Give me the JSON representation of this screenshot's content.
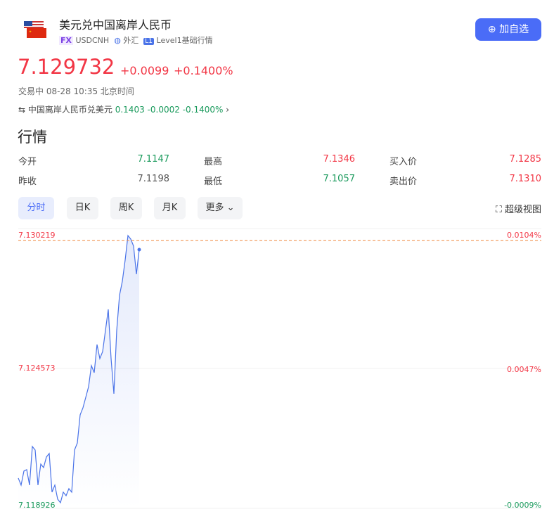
{
  "header": {
    "title": "美元兑中国离岸人民币",
    "badge": "FX",
    "code": "USDCNH",
    "market": "外汇",
    "level_badge": "L1",
    "level": "Level1基础行情",
    "button": "加自选"
  },
  "quote": {
    "price": 7.129732,
    "change": "+0.0099",
    "change_pct": "+0.1400%",
    "status": "交易中 08-28 10:35 北京时间",
    "inverse": {
      "name": "中国离岸人民币兑美元",
      "price": "0.1403",
      "change": "-0.0002",
      "change_pct": "-0.1400%"
    }
  },
  "section_title": "行情",
  "stats": [
    {
      "label": "今开",
      "value": "7.1147",
      "color": "#1a9a5c"
    },
    {
      "label": "最高",
      "value": "7.1346",
      "color": "#f23645"
    },
    {
      "label": "买入价",
      "value": "7.1285",
      "color": "#f23645"
    },
    {
      "label": "昨收",
      "value": "7.1198",
      "color": "#555"
    },
    {
      "label": "最低",
      "value": "7.1057",
      "color": "#1a9a5c"
    },
    {
      "label": "卖出价",
      "value": "7.1310",
      "color": "#f23645"
    }
  ],
  "tabs": [
    "分时",
    "日K",
    "周K",
    "月K",
    "更多"
  ],
  "active_tab": 0,
  "super_view": "超级视图",
  "chart_data": {
    "type": "line",
    "color": "#4a73e8",
    "up_color": "#f23645",
    "down_color": "#1a9a5c",
    "grid": true,
    "ylim": [
      7.118926,
      7.130219
    ],
    "yticks": [
      7.130219,
      7.124573,
      7.118926
    ],
    "y2lim": [
      -0.0009,
      0.0104
    ],
    "y2ticks": [
      {
        "value": 0.0104,
        "label": "0.0104%"
      },
      {
        "value": 0.0047,
        "label": "0.0047%"
      },
      {
        "value": -0.0009,
        "label": "-0.0009%"
      }
    ],
    "values": [
      7.120148,
      7.119864,
      7.120431,
      7.120488,
      7.119864,
      7.121424,
      7.121282,
      7.119864,
      7.120715,
      7.120573,
      7.120999,
      7.121141,
      7.11958,
      7.119864,
      7.119297,
      7.119155,
      7.11958,
      7.119438,
      7.119722,
      7.11958,
      7.121282,
      7.121566,
      7.122701,
      7.122985,
      7.12341,
      7.123836,
      7.124687,
      7.124403,
      7.125538,
      7.124971,
      7.125254,
      7.126105,
      7.126956,
      7.124971,
      7.123552,
      7.126105,
      7.127524,
      7.128091,
      7.128942,
      7.129935,
      7.129793,
      7.12951,
      7.128375,
      7.129368
    ]
  }
}
